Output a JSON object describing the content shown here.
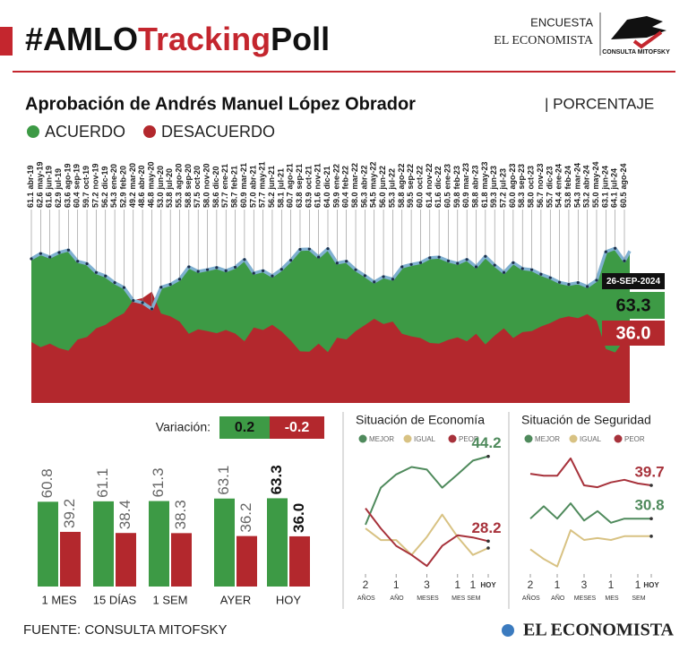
{
  "header": {
    "title": [
      "#AMLO",
      "Tracking",
      "Poll"
    ],
    "brand_top": "ENCUESTA",
    "brand_bottom": "EL ECONOMISTA",
    "logo_label": "CONSULTA MITOFSKY"
  },
  "chart_data": [
    {
      "type": "area",
      "title": "Aprobación de Andrés Manuel López Obrador",
      "unit": "| PORCENTAJE",
      "categories": [
        "abr-19",
        "may-19",
        "jun-19",
        "jul-19",
        "ago-19",
        "sep-19",
        "oct-19",
        "nov-19",
        "dic-19",
        "ene-20",
        "feb-20",
        "mar-20",
        "abr-20",
        "may-20",
        "jun-20",
        "jul-20",
        "ago-20",
        "sep-20",
        "oct-20",
        "nov-20",
        "dic-20",
        "ene-21",
        "feb-21",
        "mar-21",
        "abr-21",
        "may-21",
        "jun-21",
        "jul-21",
        "ago-21",
        "sep-21",
        "oct-21",
        "nov-21",
        "dic-21",
        "ene-22",
        "feb-22",
        "mar-22",
        "abr-22",
        "may-22",
        "jun-22",
        "jul-22",
        "ago-22",
        "sep-22",
        "oct-22",
        "nov-22",
        "dic-22",
        "ene-23",
        "feb-23",
        "mar-23",
        "abr-23",
        "may-23",
        "jun-23",
        "jul-23",
        "ago-23",
        "sep-23",
        "oct-23",
        "nov-23",
        "dic-23",
        "ene-24",
        "feb-24",
        "mar-24",
        "abr-24",
        "may-24",
        "jun-24",
        "jul-24",
        "ago-24"
      ],
      "series": [
        {
          "name": "ACUERDO",
          "color": "#3d9a45",
          "line_color": "#7fb0d0",
          "values": [
            61.1,
            62.6,
            61.6,
            62.9,
            63.6,
            60.4,
            59.7,
            57.2,
            56.2,
            54.3,
            52.9,
            49.2,
            48.6,
            46.8,
            53.0,
            53.8,
            55.3,
            58.8,
            57.5,
            58.0,
            58.6,
            57.7,
            58.7,
            60.9,
            57.0,
            57.7,
            56.2,
            58.1,
            60.7,
            63.8,
            63.9,
            61.6,
            64.0,
            59.9,
            60.4,
            58.0,
            56.3,
            54.5,
            56.0,
            55.3,
            58.8,
            59.5,
            60.0,
            61.4,
            61.6,
            60.5,
            59.8,
            60.9,
            58.8,
            61.8,
            59.3,
            57.2,
            60.0,
            58.3,
            58.0,
            56.7,
            55.7,
            54.4,
            53.8,
            54.3,
            53.2,
            55.0,
            63.1,
            64.1,
            60.5
          ],
          "value_labels": [
            "61.1",
            "62.6",
            "61.6",
            "62.9",
            "63.6",
            "60.4",
            "59.7",
            "57.2",
            "56.2",
            "54.3",
            "52.9",
            "49.2",
            "48.6",
            "46.8",
            "53.0",
            "53.8",
            "55.3",
            "58.8",
            "57.5",
            "58.0",
            "58.6",
            "57.7",
            "58.7",
            "60.9",
            "57.0",
            "57.7",
            "56.2",
            "58.1",
            "60.7",
            "63.8",
            "63.9",
            "61.6",
            "64.0",
            "59.9",
            "60.4",
            "58.0",
            "56.3",
            "54.5",
            "56.0",
            "55.3",
            "58.8",
            "59.5",
            "60.0",
            "61.4",
            "61.6",
            "60.5",
            "59.8",
            "60.9",
            "58.8",
            "61.8",
            "59.3",
            "57.2",
            "60.0",
            "58.3",
            "58.0",
            "56.7",
            "55.7",
            "54.4",
            "53.8",
            "54.3",
            "53.2",
            "55.0",
            "63.1",
            "64.1",
            "60.5"
          ]
        },
        {
          "name": "DESACUERDO",
          "color": "#b3282d",
          "values": [
            37.4,
            35.9,
            36.9,
            35.6,
            34.9,
            38.1,
            38.8,
            41.3,
            42.3,
            44.2,
            45.6,
            49.3,
            49.9,
            51.7,
            45.5,
            44.7,
            43.2,
            39.7,
            41.0,
            40.5,
            39.9,
            40.8,
            39.8,
            37.6,
            41.5,
            40.8,
            42.3,
            40.4,
            37.8,
            34.7,
            34.6,
            36.9,
            34.5,
            38.6,
            38.1,
            40.5,
            42.2,
            44.0,
            42.5,
            43.2,
            39.7,
            39.0,
            38.5,
            37.1,
            36.9,
            38.0,
            38.7,
            37.6,
            39.7,
            36.7,
            39.2,
            41.3,
            38.5,
            40.2,
            40.5,
            41.8,
            42.8,
            44.1,
            44.7,
            44.2,
            45.3,
            43.5,
            35.4,
            34.4,
            38.0
          ]
        }
      ],
      "annotation": {
        "label": "26-SEP-2024",
        "values": [
          63.3,
          36.0
        ],
        "value_labels": [
          "63.3",
          "36.0"
        ]
      },
      "ylim": [
        20,
        68
      ]
    },
    {
      "type": "bar",
      "categories": [
        "1 MES",
        "15 DÍAS",
        "1 SEM",
        "AYER",
        "HOY"
      ],
      "series": [
        {
          "color": "#3d9a45",
          "values": [
            60.8,
            61.1,
            61.3,
            63.1,
            63.3
          ],
          "value_labels": [
            "60.8",
            "61.1",
            "61.3",
            "63.1",
            "63.3"
          ]
        },
        {
          "color": "#b3282d",
          "values": [
            39.2,
            38.4,
            38.3,
            36.2,
            36.0
          ],
          "value_labels": [
            "39.2",
            "38.4",
            "38.3",
            "36.2",
            "36.0"
          ]
        }
      ],
      "ylim": [
        0,
        70
      ],
      "variation": {
        "label": "Variación:",
        "values": [
          0.2,
          -0.2
        ]
      }
    },
    {
      "type": "line",
      "title": "Situación de Economía",
      "x": [
        0,
        1,
        2,
        3,
        4,
        5,
        6,
        7,
        8
      ],
      "xlim": [
        0,
        8
      ],
      "ylim": [
        22,
        46
      ],
      "xticks": [
        {
          "value": 0,
          "label": "2 AÑOS"
        },
        {
          "value": 2,
          "label": "1 AÑO"
        },
        {
          "value": 4,
          "label": "3 MESES"
        },
        {
          "value": 6,
          "label": "1 MES"
        },
        {
          "value": 7,
          "label": "1 SEM"
        },
        {
          "value": 8,
          "label": "HOY"
        }
      ],
      "series": [
        {
          "name": "MEJOR",
          "color": "#4f8a5c",
          "label_end": true,
          "values": [
            31.3,
            38.3,
            40.8,
            42.2,
            41.7,
            38.3,
            40.8,
            43.4,
            44.2
          ]
        },
        {
          "name": "IGUAL",
          "color": "#d8c283",
          "label_end": false,
          "values": [
            30.6,
            28.4,
            28.4,
            25.6,
            29.0,
            33.2,
            29.0,
            25.6,
            26.9
          ]
        },
        {
          "name": "PEOR",
          "color": "#a7323b",
          "label_end": true,
          "values": [
            34.4,
            30.6,
            27.3,
            25.6,
            23.5,
            27.3,
            29.3,
            28.9,
            28.2
          ]
        }
      ]
    },
    {
      "type": "line",
      "title": "Situación de Seguridad",
      "x": [
        0,
        1,
        2,
        3,
        4,
        5,
        6,
        7,
        8,
        9
      ],
      "xlim": [
        0,
        9
      ],
      "ylim": [
        16,
        50
      ],
      "xticks": [
        {
          "value": 0,
          "label": "2 AÑOS"
        },
        {
          "value": 2,
          "label": "1 AÑO"
        },
        {
          "value": 4,
          "label": "3 MESES"
        },
        {
          "value": 6,
          "label": "1 MES"
        },
        {
          "value": 8,
          "label": "1 SEM"
        },
        {
          "value": 9,
          "label": "HOY"
        }
      ],
      "series": [
        {
          "name": "MEJOR",
          "color": "#4f8a5c",
          "label_end": true,
          "values": [
            30.8,
            34.1,
            30.8,
            34.9,
            30.3,
            32.8,
            29.7,
            30.8,
            30.8,
            30.8
          ]
        },
        {
          "name": "IGUAL",
          "color": "#d8c283",
          "label_end": false,
          "values": [
            22.6,
            20,
            18,
            27.7,
            25.1,
            25.6,
            25.1,
            26.1,
            26.1,
            26.1
          ]
        },
        {
          "name": "PEOR",
          "color": "#a7323b",
          "label_end": true,
          "values": [
            42.8,
            42.3,
            42.3,
            46.9,
            39.7,
            39.2,
            40.5,
            41.2,
            40.2,
            39.7
          ]
        }
      ]
    }
  ],
  "footer": {
    "source": "FUENTE: CONSULTA MITOFSKY",
    "brand": "EL ECONOMISTA"
  }
}
